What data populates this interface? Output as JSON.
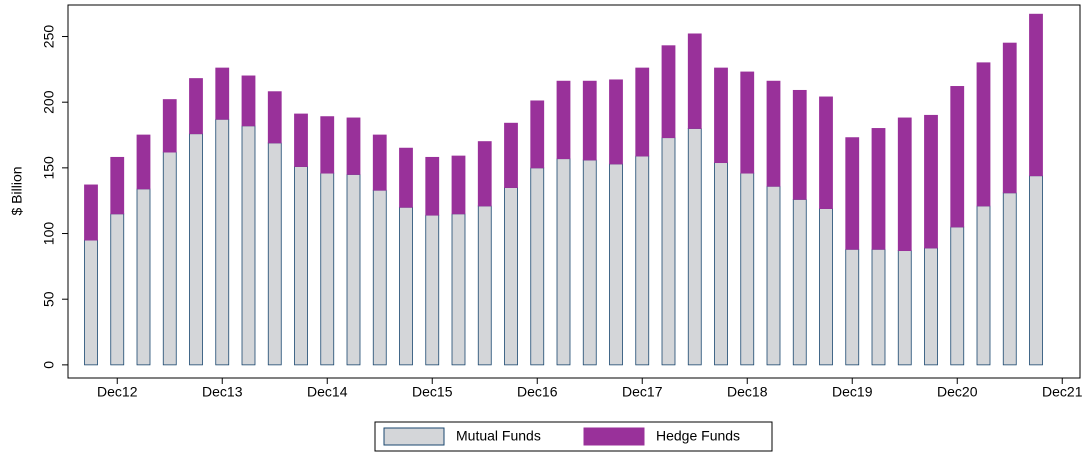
{
  "chart_data": {
    "type": "stacked-bar",
    "y_label": "$ Billion",
    "categories": [
      null,
      "Dec12",
      null,
      null,
      null,
      "Dec13",
      null,
      null,
      null,
      "Dec14",
      null,
      null,
      null,
      "Dec15",
      null,
      null,
      null,
      "Dec16",
      null,
      null,
      null,
      "Dec17",
      null,
      null,
      null,
      "Dec18",
      null,
      null,
      null,
      "Dec19",
      null,
      null,
      null,
      "Dec20",
      null,
      null,
      null,
      "Dec21"
    ],
    "series": [
      {
        "name": "Mutual Funds",
        "color": "#d4d6d9",
        "values": [
          95,
          115,
          134,
          162,
          176,
          187,
          182,
          169,
          151,
          146,
          145,
          133,
          120,
          114,
          115,
          121,
          135,
          150,
          157,
          156,
          153,
          159,
          173,
          180,
          154,
          146,
          136,
          126,
          119,
          88,
          88,
          87,
          89,
          105,
          121,
          131,
          144,
          null
        ]
      },
      {
        "name": "Hedge Funds",
        "color": "#99319a",
        "values": [
          42,
          43,
          41,
          40,
          42,
          39,
          38,
          39,
          40,
          43,
          43,
          42,
          45,
          44,
          44,
          49,
          49,
          51,
          59,
          60,
          64,
          67,
          70,
          72,
          72,
          77,
          80,
          83,
          85,
          85,
          92,
          101,
          101,
          107,
          109,
          114,
          123,
          null
        ]
      }
    ],
    "ylim": [
      -10,
      274
    ],
    "yticks": [
      0,
      50,
      100,
      150,
      200,
      250
    ],
    "grid": false
  }
}
